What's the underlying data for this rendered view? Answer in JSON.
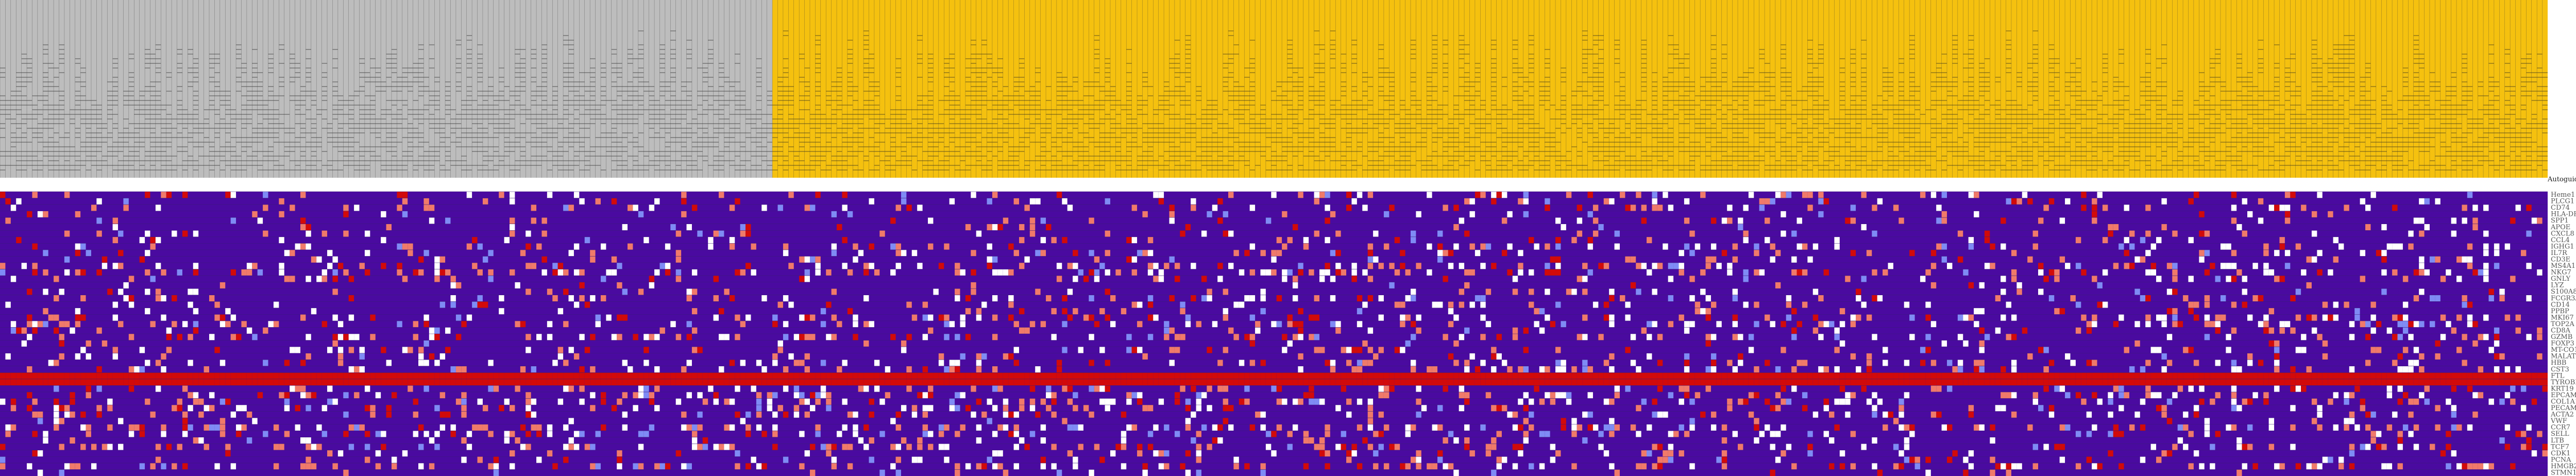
{
  "chart_data": {
    "type": "heatmap",
    "title": "",
    "legend_label": "Autoguido",
    "column_groups": [
      {
        "name": "",
        "color": "#bdbdbd",
        "columns": 144
      },
      {
        "name": "",
        "color": "#f5c10f",
        "columns": 331
      }
    ],
    "colors": {
      "background": "#4a0aa0",
      "cell_border": "#3a1c7a",
      "high": "#d20a0a",
      "mid": "#ffffff",
      "low": "#7f8bf5",
      "gray_cols": "#bdbdbd",
      "gold_cols": "#f5c10f"
    },
    "row_labels": [
      "Heme1",
      "PLCG1",
      "CD74",
      "HLA-DRA",
      "SPP1",
      "APOE",
      "CXCL8",
      "CCL4",
      "IGHG1",
      "IL7R",
      "CD3E",
      "MS4A1",
      "NKG7",
      "GNLY",
      "LYZ",
      "S100A8",
      "FCGR3A",
      "CD14",
      "PPBP",
      "MKI67",
      "TOP2A",
      "CD8A",
      "GZMB",
      "FOXP3",
      "MT-CO1",
      "MALAT1",
      "HBB",
      "CST3",
      "FTL",
      "TYROBP",
      "KRT19",
      "EPCAM",
      "COL1A1",
      "PECAM1",
      "ACTA2",
      "VWF",
      "CCR7",
      "SELL",
      "LTB",
      "TCF7",
      "CDK1",
      "PCNA",
      "HMGB2",
      "STMN1"
    ],
    "dense_rows": [
      28,
      29
    ],
    "seed": 7
  }
}
